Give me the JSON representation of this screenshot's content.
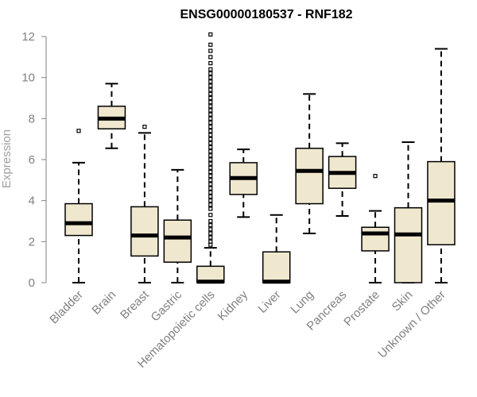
{
  "chart_data": {
    "type": "boxplot",
    "title": "ENSG00000180537 - RNF182",
    "xlabel": "",
    "ylabel": "Expression",
    "ylim": [
      0,
      12
    ],
    "yticks": [
      0,
      2,
      4,
      6,
      8,
      10,
      12
    ],
    "colors": {
      "box_fill": "#efe8cf",
      "stroke": "#000000",
      "axis": "#808080",
      "median": "#000000"
    },
    "categories": [
      "Bladder",
      "Brain",
      "Breast",
      "Gastric",
      "Hematopoietic cells",
      "Kidney",
      "Liver",
      "Lung",
      "Pancreas",
      "Prostate",
      "Skin",
      "Unknown / Other"
    ],
    "boxes": [
      {
        "name": "Bladder",
        "whisker_low": 0,
        "q1": 2.3,
        "median": 2.9,
        "q3": 3.85,
        "whisker_high": 5.85,
        "outliers": [
          7.4
        ]
      },
      {
        "name": "Brain",
        "whisker_low": 6.55,
        "q1": 7.5,
        "median": 8.0,
        "q3": 8.6,
        "whisker_high": 9.7,
        "outliers": []
      },
      {
        "name": "Breast",
        "whisker_low": 0,
        "q1": 1.3,
        "median": 2.3,
        "q3": 3.7,
        "whisker_high": 7.3,
        "outliers": [
          7.6
        ]
      },
      {
        "name": "Gastric",
        "whisker_low": 0,
        "q1": 1.0,
        "median": 2.2,
        "q3": 3.05,
        "whisker_high": 5.5,
        "outliers": []
      },
      {
        "name": "Hematopoietic cells",
        "whisker_low": 0,
        "q1": 0,
        "median": 0.05,
        "q3": 0.8,
        "whisker_high": 1.7,
        "outliers": [
          1.85,
          2.0,
          2.2,
          2.4,
          2.6,
          2.8,
          3.0,
          3.3,
          3.6,
          3.8,
          4.0,
          4.2,
          4.4,
          4.6,
          4.8,
          5.0,
          5.2,
          5.4,
          5.6,
          5.8,
          6.0,
          6.2,
          6.4,
          6.6,
          6.8,
          7.0,
          7.2,
          7.4,
          7.6,
          7.8,
          8.0,
          8.2,
          8.4,
          8.6,
          8.8,
          9.0,
          9.2,
          9.4,
          9.6,
          9.8,
          10.0,
          10.2,
          10.4,
          10.7,
          11.0,
          11.3,
          11.6,
          12.1
        ]
      },
      {
        "name": "Kidney",
        "whisker_low": 3.2,
        "q1": 4.3,
        "median": 5.1,
        "q3": 5.85,
        "whisker_high": 6.5,
        "outliers": []
      },
      {
        "name": "Liver",
        "whisker_low": 0,
        "q1": 0,
        "median": 0.05,
        "q3": 1.5,
        "whisker_high": 3.3,
        "outliers": []
      },
      {
        "name": "Lung",
        "whisker_low": 2.4,
        "q1": 3.85,
        "median": 5.45,
        "q3": 6.55,
        "whisker_high": 9.2,
        "outliers": []
      },
      {
        "name": "Pancreas",
        "whisker_low": 3.25,
        "q1": 4.6,
        "median": 5.35,
        "q3": 6.15,
        "whisker_high": 6.8,
        "outliers": []
      },
      {
        "name": "Prostate",
        "whisker_low": 0,
        "q1": 1.55,
        "median": 2.4,
        "q3": 2.7,
        "whisker_high": 3.5,
        "outliers": [
          5.2
        ]
      },
      {
        "name": "Skin",
        "whisker_low": 0,
        "q1": 0,
        "median": 2.35,
        "q3": 3.65,
        "whisker_high": 6.85,
        "outliers": []
      },
      {
        "name": "Unknown / Other",
        "whisker_low": 0,
        "q1": 1.85,
        "median": 4.0,
        "q3": 5.9,
        "whisker_high": 11.4,
        "outliers": []
      }
    ]
  }
}
